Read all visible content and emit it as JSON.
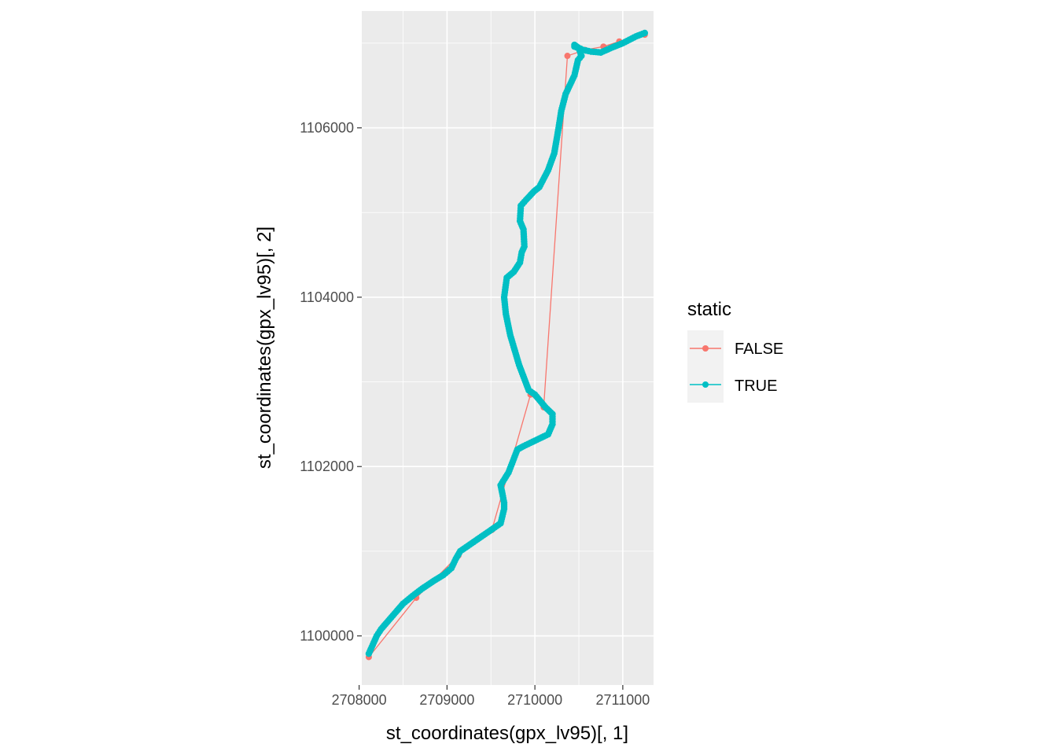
{
  "chart_data": {
    "type": "line",
    "title": "",
    "xlabel": "st_coordinates(gpx_lv95)[, 1]",
    "ylabel": "st_coordinates(gpx_lv95)[, 2]",
    "xlim": [
      2708030,
      2711350
    ],
    "ylim": [
      1099420,
      1107380
    ],
    "x_ticks": [
      2708000,
      2709000,
      2710000,
      2711000
    ],
    "x_tick_labels": [
      "2708000",
      "2709000",
      "2710000",
      "2711000"
    ],
    "y_ticks": [
      1100000,
      1102000,
      1104000,
      1106000
    ],
    "y_tick_labels": [
      "1100000",
      "1102000",
      "1104000",
      "1106000"
    ],
    "grid": true,
    "panel_background": "#ebebeb",
    "legend": {
      "title": "static",
      "position": "right",
      "entries": [
        "FALSE",
        "TRUE"
      ]
    },
    "series": [
      {
        "name": "FALSE",
        "color": "#f8766d",
        "x": [
          2708110,
          2708650,
          2709130,
          2709510,
          2709950,
          2710100,
          2710370,
          2710570,
          2710780,
          2710960,
          2711250
        ],
        "y": [
          1099750,
          1100450,
          1100950,
          1101250,
          1102850,
          1102700,
          1106850,
          1106920,
          1106960,
          1107020,
          1107100
        ]
      },
      {
        "name": "TRUE",
        "color": "#00bfc4",
        "x": [
          2708110,
          2708200,
          2708250,
          2708350,
          2708500,
          2708630,
          2708720,
          2708850,
          2708960,
          2709050,
          2709100,
          2709150,
          2709500,
          2709610,
          2709650,
          2709650,
          2709630,
          2709610,
          2709700,
          2709730,
          2709800,
          2709870,
          2709950,
          2710050,
          2710150,
          2710200,
          2710200,
          2710120,
          2710000,
          2709930,
          2709820,
          2709720,
          2709670,
          2709650,
          2709680,
          2709760,
          2709830,
          2709850,
          2709880,
          2709870,
          2709830,
          2709840,
          2709900,
          2709990,
          2710050,
          2710150,
          2710220,
          2710270,
          2710300,
          2710350,
          2710450,
          2710490,
          2710530,
          2710500,
          2710450,
          2710450,
          2710490,
          2710550,
          2710640,
          2710750,
          2710880,
          2711000,
          2711150,
          2711250
        ],
        "y": [
          1099790,
          1100000,
          1100080,
          1100200,
          1100380,
          1100490,
          1100560,
          1100650,
          1100720,
          1100800,
          1100910,
          1101000,
          1101250,
          1101330,
          1101500,
          1101570,
          1101680,
          1101780,
          1101930,
          1102010,
          1102200,
          1102240,
          1102280,
          1102330,
          1102380,
          1102500,
          1102620,
          1102700,
          1102850,
          1102900,
          1103200,
          1103550,
          1103800,
          1104000,
          1104230,
          1104300,
          1104410,
          1104530,
          1104600,
          1104800,
          1104900,
          1105080,
          1105150,
          1105250,
          1105300,
          1105500,
          1105700,
          1106000,
          1106200,
          1106400,
          1106620,
          1106800,
          1106850,
          1106940,
          1106960,
          1106980,
          1106950,
          1106920,
          1106900,
          1106890,
          1106950,
          1107000,
          1107080,
          1107120
        ]
      }
    ]
  }
}
